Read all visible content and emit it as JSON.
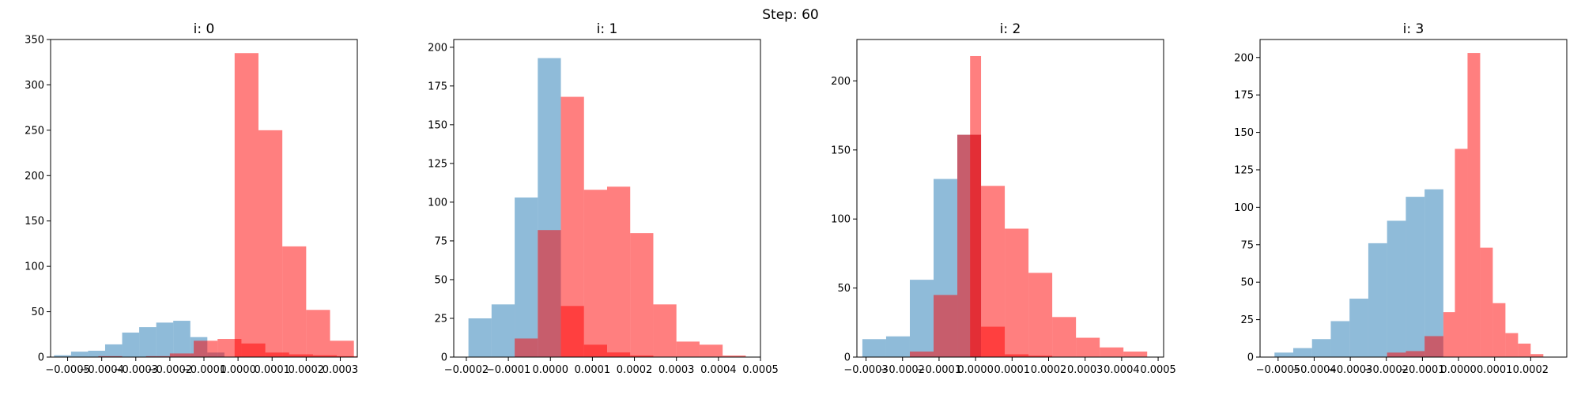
{
  "figure": {
    "title": "Step: 60"
  },
  "chart_data": [
    {
      "type": "histogram",
      "title": "i: 0",
      "xlim": [
        -0.00055,
        0.00035
      ],
      "ylim": [
        0,
        350
      ],
      "xticks": [
        -0.0005,
        -0.0004,
        -0.0003,
        -0.0002,
        -0.0001,
        0.0,
        0.0001,
        0.0002,
        0.0003
      ],
      "xtick_labels": [
        "−0.0005",
        "−0.0004",
        "−0.0003",
        "−0.0002",
        "−0.0001",
        "0.0000",
        "0.0001",
        "0.0002",
        "0.0003"
      ],
      "yticks": [
        0,
        50,
        100,
        150,
        200,
        250,
        300,
        350
      ],
      "ytick_labels": [
        "0",
        "50",
        "100",
        "150",
        "200",
        "250",
        "300",
        "350"
      ],
      "series": [
        {
          "color": "#1f77b4",
          "alpha": 0.5,
          "edges": [
            -0.00054,
            -0.00049,
            -0.00044,
            -0.00039,
            -0.00034,
            -0.00029,
            -0.00024,
            -0.00019,
            -0.00014,
            -9e-05,
            -4e-05
          ],
          "counts": [
            2,
            6,
            7,
            14,
            27,
            33,
            38,
            40,
            22,
            5
          ]
        },
        {
          "color": "#ff0000",
          "alpha": 0.5,
          "edges": [
            -0.00041,
            -0.00034,
            -0.00027,
            -0.0002,
            -0.00013,
            -6e-05,
            1e-05,
            8e-05,
            0.00015,
            0.00022,
            0.00029,
            0.00036
          ],
          "counts": [
            1,
            0,
            1,
            4,
            18,
            20,
            15,
            5,
            3,
            2,
            1
          ]
        },
        {
          "color": "#ff0000",
          "alpha": 0.5,
          "edges": [
            -1e-05,
            6e-05,
            0.00013,
            0.0002,
            0.00027,
            0.00034
          ],
          "counts": [
            335,
            250,
            122,
            52,
            18
          ]
        }
      ]
    },
    {
      "type": "histogram",
      "title": "i: 1",
      "xlim": [
        -0.00023,
        0.0005
      ],
      "ylim": [
        0,
        205
      ],
      "xticks": [
        -0.0002,
        -0.0001,
        0.0,
        0.0001,
        0.0002,
        0.0003,
        0.0004,
        0.0005
      ],
      "xtick_labels": [
        "−0.0002",
        "−0.0001",
        "0.0000",
        "0.0001",
        "0.0002",
        "0.0003",
        "0.0004",
        "0.0005"
      ],
      "yticks": [
        0,
        25,
        50,
        75,
        100,
        125,
        150,
        175,
        200
      ],
      "ytick_labels": [
        "0",
        "25",
        "50",
        "75",
        "100",
        "125",
        "150",
        "175",
        "200"
      ],
      "series": [
        {
          "color": "#1f77b4",
          "alpha": 0.5,
          "edges": [
            -0.000195,
            -0.00014,
            -8.5e-05,
            -3e-05,
            2.5e-05,
            8e-05,
            0.000135,
            0.00019,
            0.000245,
            0.0003,
            0.000355,
            0.00041
          ],
          "counts": [
            25,
            34,
            103,
            193,
            0,
            0,
            0,
            0,
            0,
            0,
            0
          ]
        },
        {
          "color": "#ff0000",
          "alpha": 0.5,
          "edges": [
            -8.5e-05,
            -3e-05,
            2.5e-05,
            8e-05,
            0.000135,
            0.00019,
            0.000245,
            0.0003,
            0.000355,
            0.00041,
            0.000465
          ],
          "counts": [
            12,
            82,
            33,
            8,
            3,
            1,
            0,
            0,
            0,
            0
          ]
        },
        {
          "color": "#ff0000",
          "alpha": 0.5,
          "edges": [
            2.5e-05,
            8e-05,
            0.000135,
            0.00019,
            0.000245,
            0.0003,
            0.000355,
            0.00041,
            0.000465
          ],
          "counts": [
            168,
            108,
            110,
            80,
            34,
            10,
            8,
            1
          ]
        }
      ]
    },
    {
      "type": "histogram",
      "title": "i: 2",
      "xlim": [
        -0.000325,
        0.000515
      ],
      "ylim": [
        0,
        230
      ],
      "xticks": [
        -0.0003,
        -0.0002,
        -0.0001,
        0.0,
        0.0001,
        0.0002,
        0.0003,
        0.0004,
        0.0005
      ],
      "xtick_labels": [
        "−0.0003",
        "−0.0002",
        "−0.0001",
        "0.0000",
        "0.0001",
        "0.0002",
        "0.0003",
        "0.0004",
        "0.0005"
      ],
      "yticks": [
        0,
        50,
        100,
        150,
        200
      ],
      "ytick_labels": [
        "0",
        "50",
        "100",
        "150",
        "200"
      ],
      "series": [
        {
          "color": "#1f77b4",
          "alpha": 0.5,
          "edges": [
            -0.00031,
            -0.000245,
            -0.00018,
            -0.000115,
            -5e-05,
            1.5e-05,
            8e-05,
            0.000145
          ],
          "counts": [
            13,
            15,
            56,
            129,
            161,
            0,
            0
          ]
        },
        {
          "color": "#ff0000",
          "alpha": 0.5,
          "edges": [
            -0.00018,
            -0.000115,
            -5e-05,
            1.5e-05,
            8e-05,
            0.000145,
            0.00021,
            0.000275
          ],
          "counts": [
            4,
            45,
            161,
            22,
            2,
            1,
            0
          ]
        },
        {
          "color": "#ff0000",
          "alpha": 0.5,
          "edges": [
            -5e-05,
            -1.5e-05,
            1.5e-05,
            8e-05,
            0.000145,
            0.00021,
            0.000275,
            0.00034,
            0.000405,
            0.00047,
            0.000505
          ],
          "counts": [
            0,
            218,
            124,
            93,
            61,
            29,
            14,
            7,
            4,
            0
          ]
        }
      ]
    },
    {
      "type": "histogram",
      "title": "i: 3",
      "xlim": [
        -0.00055,
        0.0003
      ],
      "ylim": [
        0,
        212
      ],
      "xticks": [
        -0.0005,
        -0.0004,
        -0.0003,
        -0.0002,
        -0.0001,
        0.0,
        0.0001,
        0.0002
      ],
      "xtick_labels": [
        "−0.0005",
        "−0.0004",
        "−0.0003",
        "−0.0002",
        "−0.0001",
        "0.0000",
        "0.0001",
        "0.0002"
      ],
      "yticks": [
        0,
        25,
        50,
        75,
        100,
        125,
        150,
        175,
        200
      ],
      "ytick_labels": [
        "0",
        "25",
        "50",
        "75",
        "100",
        "125",
        "150",
        "175",
        "200"
      ],
      "series": [
        {
          "color": "#1f77b4",
          "alpha": 0.5,
          "edges": [
            -0.00051,
            -0.000458,
            -0.000406,
            -0.000354,
            -0.000302,
            -0.00025,
            -0.000198,
            -0.000146,
            -9.4e-05,
            -4.2e-05
          ],
          "counts": [
            3,
            6,
            12,
            24,
            39,
            76,
            91,
            107,
            112
          ]
        },
        {
          "color": "#ff0000",
          "alpha": 0.5,
          "edges": [
            -0.00025,
            -0.000198,
            -0.000146,
            -9.4e-05,
            -4.2e-05,
            -1e-05
          ],
          "counts": [
            0,
            3,
            4,
            14,
            30
          ]
        },
        {
          "color": "#ff0000",
          "alpha": 0.5,
          "edges": [
            -4.2e-05,
            -1e-05,
            2.5e-05,
            6e-05,
            9.5e-05,
            0.00013,
            0.000165,
            0.0002,
            0.000235,
            0.00027
          ],
          "counts": [
            0,
            139,
            203,
            73,
            36,
            16,
            9,
            2,
            0
          ]
        }
      ]
    }
  ]
}
